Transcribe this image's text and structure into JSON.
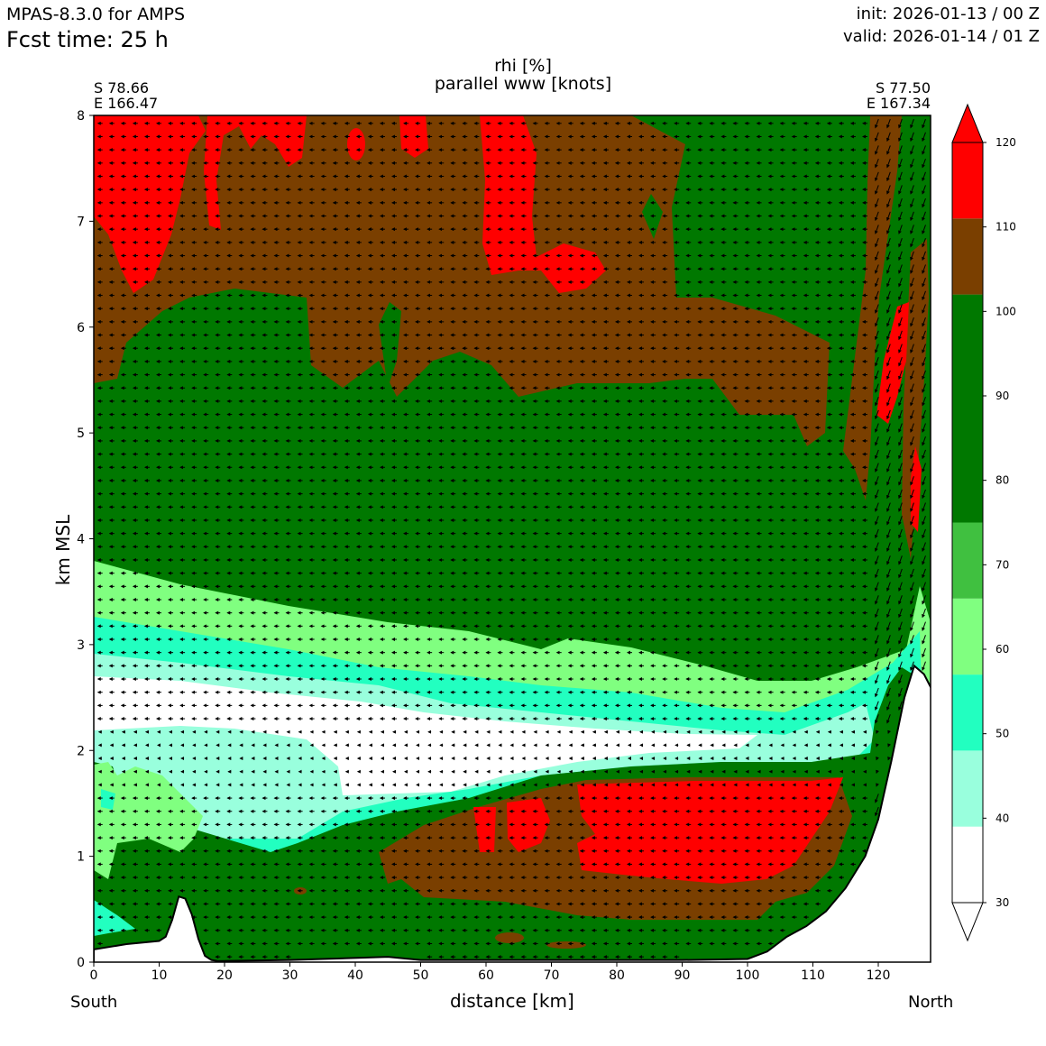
{
  "header": {
    "model": "MPAS-8.3.0 for AMPS",
    "fcst": "Fcst time:   25 h",
    "init": "init: 2026-01-13 / 00 Z",
    "valid": "valid: 2026-01-14 / 01 Z"
  },
  "endpoints": {
    "left_lat": "S 78.66",
    "left_lon": "E 166.47",
    "right_lat": "S 77.50",
    "right_lon": "E 167.34",
    "left_dir": "South",
    "right_dir": "North"
  },
  "chart_data": {
    "type": "heatmap",
    "title": "rhi [%]",
    "subtitle": "parallel www [knots]",
    "xlabel": "distance [km]",
    "ylabel": "km MSL",
    "xlim": [
      0,
      128
    ],
    "ylim": [
      0,
      8
    ],
    "xticks": [
      0,
      10,
      20,
      30,
      40,
      50,
      60,
      70,
      80,
      90,
      100,
      110,
      120
    ],
    "yticks": [
      0,
      1,
      2,
      3,
      4,
      5,
      6,
      7,
      8
    ],
    "colorbar": {
      "ticks": [
        30,
        40,
        50,
        60,
        70,
        80,
        90,
        100,
        110,
        120
      ],
      "levels": [
        {
          "from": 30,
          "to": 39,
          "color": "#ffffff"
        },
        {
          "from": 39,
          "to": 48,
          "color": "#99ffdd"
        },
        {
          "from": 48,
          "to": 57,
          "color": "#22ffc0"
        },
        {
          "from": 57,
          "to": 66,
          "color": "#80ff80"
        },
        {
          "from": 66,
          "to": 75,
          "color": "#40c040"
        },
        {
          "from": 75,
          "to": 102,
          "color": "#007800"
        },
        {
          "from": 102,
          "to": 111,
          "color": "#7a3f00"
        },
        {
          "from": 111,
          "to": 120,
          "color": "#ff0000"
        }
      ],
      "extend": "both"
    },
    "terrain_km": [
      [
        0,
        0.12
      ],
      [
        5,
        0.17
      ],
      [
        10,
        0.2
      ],
      [
        11,
        0.24
      ],
      [
        12,
        0.4
      ],
      [
        13,
        0.62
      ],
      [
        14,
        0.6
      ],
      [
        15,
        0.45
      ],
      [
        16,
        0.22
      ],
      [
        17,
        0.06
      ],
      [
        18,
        0.02
      ],
      [
        19,
        0.01
      ],
      [
        30,
        0.02
      ],
      [
        45,
        0.05
      ],
      [
        50,
        0.02
      ],
      [
        90,
        0.02
      ],
      [
        100,
        0.03
      ],
      [
        103,
        0.1
      ],
      [
        106,
        0.24
      ],
      [
        109,
        0.34
      ],
      [
        112,
        0.48
      ],
      [
        115,
        0.7
      ],
      [
        118,
        1.0
      ],
      [
        120,
        1.35
      ],
      [
        122,
        1.9
      ],
      [
        124,
        2.5
      ],
      [
        125.5,
        2.8
      ],
      [
        127,
        2.72
      ],
      [
        128,
        2.6
      ]
    ],
    "wind_field_note": "parallel wind arrows, mostly northerly-to-southward"
  }
}
